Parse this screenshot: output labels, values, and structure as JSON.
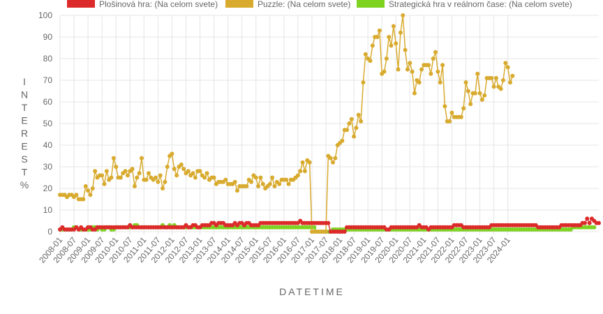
{
  "chart_data": {
    "type": "line",
    "xlabel": "DATETIME",
    "ylabel": "INTEREST %",
    "ylim": [
      0,
      100
    ],
    "yticks": [
      0,
      10,
      20,
      30,
      40,
      50,
      60,
      70,
      80,
      90,
      100
    ],
    "grid": true,
    "legend_position": "top",
    "x_tick_labels": [
      "2008-01",
      "2008-07",
      "2009-01",
      "2009-07",
      "2010-01",
      "2010-07",
      "2011-01",
      "2011-07",
      "2012-01",
      "2012-07",
      "2013-01",
      "2013-07",
      "2014-01",
      "2014-07",
      "2015-01",
      "2015-07",
      "2016-01",
      "2016-07",
      "2017-01",
      "2017-07",
      "2018-01",
      "2018-07",
      "2019-01",
      "2019-07",
      "2020-01",
      "2020-07",
      "2021-01",
      "2021-07",
      "2022-01",
      "2022-07",
      "2023-01",
      "2023-07",
      "2024-01"
    ],
    "start_month": "2008-01",
    "series": [
      {
        "name": "Plošinová hra: (Na celom svete)",
        "color": "#dc2a2a",
        "values": [
          1,
          2,
          1,
          1,
          1,
          1,
          1,
          2,
          1,
          2,
          1,
          1,
          2,
          2,
          1,
          1,
          2,
          2,
          2,
          2,
          2,
          2,
          2,
          2,
          2,
          2,
          2,
          2,
          2,
          2,
          3,
          2,
          2,
          2,
          2,
          2,
          2,
          2,
          2,
          2,
          2,
          2,
          2,
          2,
          2,
          2,
          2,
          2,
          2,
          2,
          2,
          2,
          2,
          2,
          3,
          2,
          2,
          3,
          3,
          2,
          2,
          3,
          3,
          3,
          3,
          4,
          4,
          3,
          4,
          4,
          4,
          3,
          3,
          3,
          3,
          4,
          3,
          4,
          4,
          3,
          4,
          4,
          3,
          3,
          3,
          3,
          4,
          4,
          4,
          4,
          4,
          4,
          4,
          4,
          4,
          4,
          4,
          4,
          4,
          4,
          4,
          4,
          4,
          5,
          4,
          4,
          4,
          4,
          4,
          4,
          4,
          4,
          4,
          4,
          4,
          4,
          0,
          0,
          0,
          0,
          0,
          0,
          0,
          2,
          2,
          2,
          2,
          2,
          2,
          2,
          2,
          2,
          2,
          2,
          2,
          2,
          2,
          2,
          2,
          2,
          1,
          1,
          2,
          2,
          2,
          2,
          2,
          2,
          2,
          2,
          2,
          2,
          2,
          2,
          3,
          2,
          2,
          2,
          1,
          2,
          2,
          2,
          2,
          2,
          2,
          2,
          2,
          2,
          2,
          3,
          3,
          3,
          3,
          2,
          2,
          2,
          2,
          2,
          2,
          2,
          2,
          2,
          2,
          2,
          2,
          3,
          3,
          3,
          3,
          3,
          3,
          3,
          3,
          3,
          3,
          3,
          3,
          3,
          3,
          3,
          3,
          3,
          3,
          3,
          3,
          2,
          2,
          2,
          2,
          2,
          2,
          2,
          2,
          2,
          2,
          3,
          3,
          3,
          3,
          3,
          3,
          3,
          3,
          3,
          4,
          4,
          6,
          4,
          6,
          5,
          4,
          4
        ]
      },
      {
        "name": "Puzzle: (Na celom svete)",
        "color": "#d8aa2e",
        "values": [
          17,
          17,
          17,
          16,
          17,
          17,
          16,
          17,
          15,
          15,
          15,
          21,
          19,
          17,
          20,
          28,
          25,
          26,
          26,
          22,
          28,
          24,
          25,
          34,
          30,
          25,
          25,
          27,
          28,
          26,
          28,
          29,
          21,
          25,
          27,
          34,
          24,
          24,
          27,
          25,
          24,
          25,
          23,
          26,
          20,
          23,
          30,
          35,
          36,
          29,
          26,
          30,
          31,
          29,
          27,
          28,
          26,
          27,
          25,
          28,
          28,
          26,
          25,
          27,
          24,
          25,
          25,
          22,
          23,
          23,
          23,
          24,
          22,
          22,
          22,
          23,
          19,
          21,
          21,
          21,
          21,
          24,
          23,
          26,
          25,
          21,
          25,
          22,
          20,
          21,
          22,
          25,
          21,
          23,
          22,
          24,
          24,
          24,
          22,
          24,
          24,
          25,
          26,
          28,
          32,
          28,
          33,
          32,
          0,
          0,
          0,
          0,
          0,
          0,
          0,
          35,
          34,
          32,
          34,
          40,
          41,
          42,
          47,
          47,
          50,
          52,
          44,
          48,
          54,
          51,
          69,
          82,
          80,
          79,
          86,
          90,
          90,
          93,
          73,
          74,
          80,
          90,
          86,
          95,
          87,
          75,
          92,
          100,
          84,
          75,
          78,
          74,
          64,
          70,
          69,
          75,
          77,
          77,
          77,
          73,
          80,
          83,
          74,
          69,
          77,
          58,
          51,
          51,
          55,
          53,
          53,
          53,
          53,
          57,
          69,
          65,
          59,
          64,
          64,
          73,
          64,
          61,
          63,
          71,
          71,
          71,
          67,
          71,
          67,
          66,
          70,
          78,
          76,
          69,
          72
        ]
      },
      {
        "name": "Strategická hra v reálnom čase: (Na celom svete)",
        "color": "#7ed321",
        "values": [
          1,
          1,
          1,
          1,
          1,
          1,
          2,
          2,
          1,
          1,
          1,
          1,
          1,
          1,
          2,
          2,
          1,
          2,
          1,
          1,
          2,
          2,
          1,
          1,
          2,
          2,
          2,
          2,
          2,
          2,
          2,
          2,
          3,
          3,
          2,
          2,
          2,
          2,
          2,
          2,
          2,
          2,
          2,
          2,
          3,
          2,
          2,
          3,
          2,
          3,
          2,
          2,
          2,
          2,
          2,
          2,
          2,
          2,
          2,
          2,
          2,
          2,
          2,
          2,
          2,
          2,
          2,
          2,
          2,
          2,
          2,
          2,
          2,
          2,
          2,
          2,
          2,
          2,
          2,
          2,
          2,
          2,
          2,
          2,
          2,
          2,
          2,
          2,
          2,
          2,
          2,
          2,
          2,
          2,
          2,
          2,
          2,
          2,
          2,
          2,
          2,
          2,
          2,
          2,
          2,
          2,
          2,
          2,
          2,
          2,
          0,
          0,
          0,
          0,
          0,
          0,
          0,
          1,
          1,
          1,
          1,
          1,
          1,
          1,
          1,
          1,
          1,
          1,
          1,
          1,
          1,
          1,
          1,
          1,
          1,
          1,
          1,
          1,
          1,
          1,
          1,
          1,
          1,
          1,
          1,
          1,
          1,
          1,
          1,
          1,
          1,
          1,
          1,
          1,
          1,
          1,
          1,
          1,
          1,
          1,
          1,
          1,
          1,
          1,
          1,
          1,
          1,
          1,
          1,
          1,
          1,
          1,
          1,
          1,
          1,
          1,
          1,
          1,
          1,
          1,
          1,
          1,
          1,
          1,
          1,
          1,
          1,
          1,
          1,
          1,
          1,
          1,
          1,
          1,
          1,
          1,
          1,
          1,
          1,
          1,
          1,
          1,
          1,
          1,
          1,
          1,
          1,
          1,
          1,
          1,
          1,
          1,
          1,
          1,
          1,
          1,
          1,
          1,
          1,
          1,
          2,
          2,
          2,
          2,
          2,
          2,
          2,
          2,
          2,
          2
        ]
      }
    ]
  }
}
